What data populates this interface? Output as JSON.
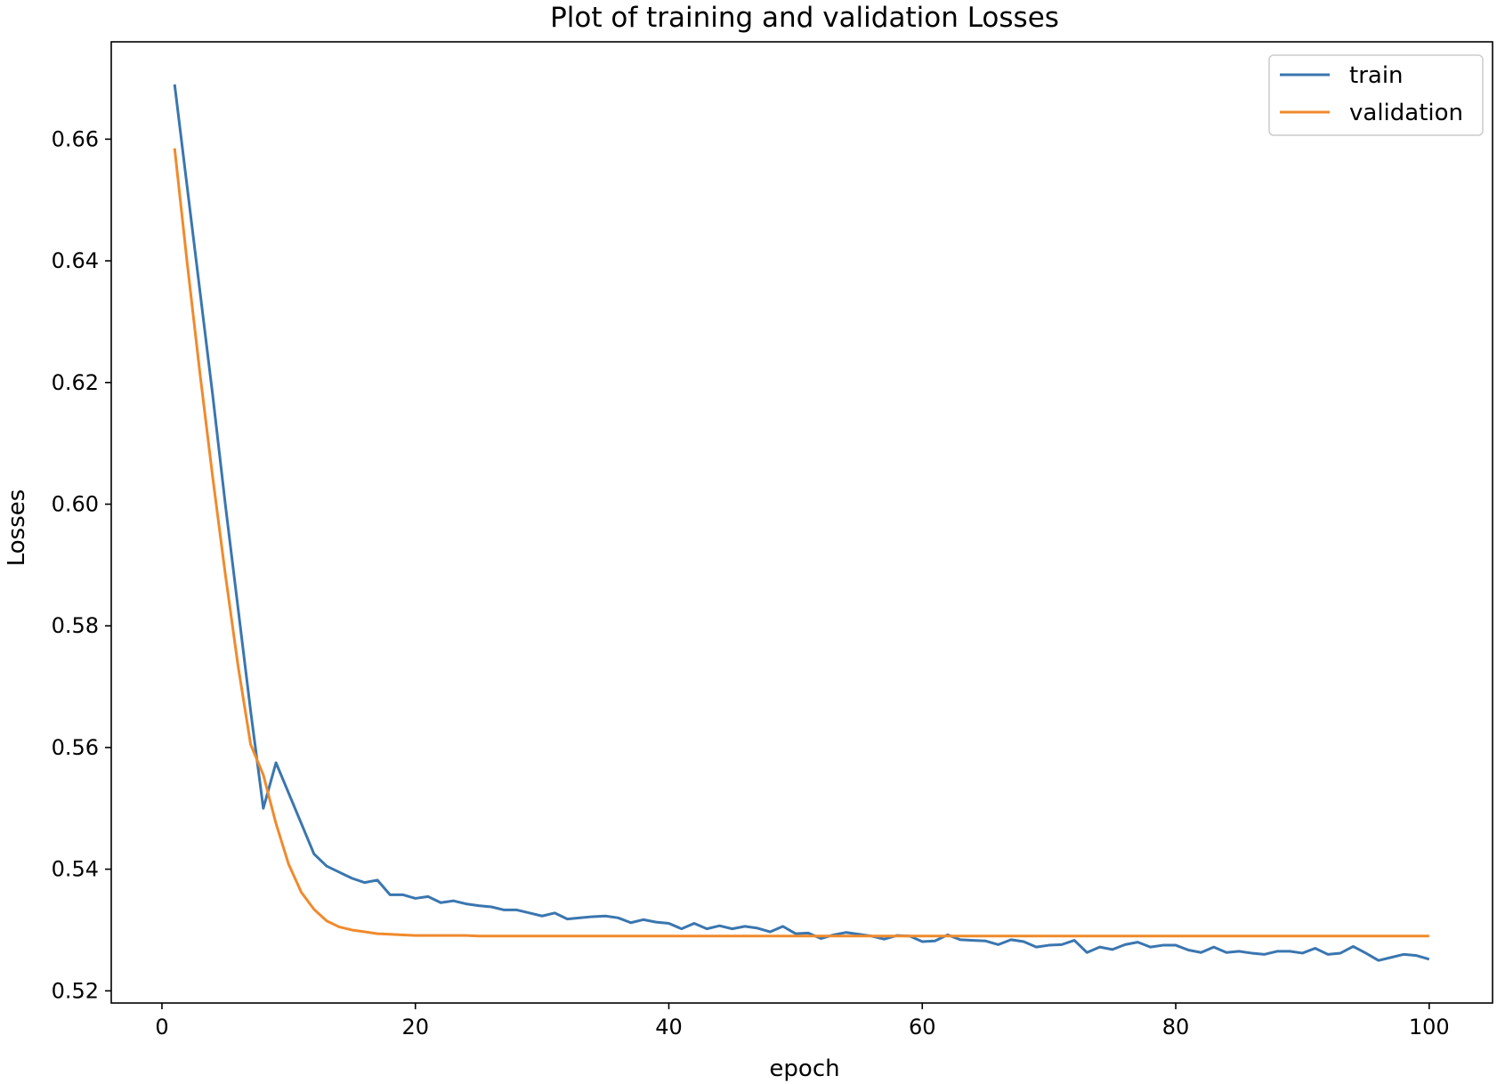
{
  "chart_data": {
    "type": "line",
    "title": "Plot of training and validation Losses",
    "xlabel": "epoch",
    "ylabel": "Losses",
    "xlim": [
      -4,
      105
    ],
    "ylim": [
      0.518,
      0.676
    ],
    "xticks": [
      0,
      20,
      40,
      60,
      80,
      100
    ],
    "xtick_labels": [
      "0",
      "20",
      "40",
      "60",
      "80",
      "100"
    ],
    "yticks": [
      0.52,
      0.54,
      0.56,
      0.58,
      0.6,
      0.62,
      0.64,
      0.66
    ],
    "ytick_labels": [
      "0.52",
      "0.54",
      "0.56",
      "0.58",
      "0.60",
      "0.62",
      "0.64",
      "0.66"
    ],
    "grid": false,
    "legend_position": "top-right",
    "x": [
      1,
      2,
      3,
      4,
      5,
      6,
      7,
      8,
      9,
      10,
      11,
      12,
      13,
      14,
      15,
      16,
      17,
      18,
      19,
      20,
      21,
      22,
      23,
      24,
      25,
      26,
      27,
      28,
      29,
      30,
      31,
      32,
      33,
      34,
      35,
      36,
      37,
      38,
      39,
      40,
      41,
      42,
      43,
      44,
      45,
      46,
      47,
      48,
      49,
      50,
      51,
      52,
      53,
      54,
      55,
      56,
      57,
      58,
      59,
      60,
      61,
      62,
      63,
      64,
      65,
      66,
      67,
      68,
      69,
      70,
      71,
      72,
      73,
      74,
      75,
      76,
      77,
      78,
      79,
      80,
      81,
      82,
      83,
      84,
      85,
      86,
      87,
      88,
      89,
      90,
      91,
      92,
      93,
      94,
      95,
      96,
      97,
      98,
      99,
      100
    ],
    "series": [
      {
        "name": "train",
        "color": "#3a76af",
        "values": [
          0.669,
          0.652,
          0.635,
          0.618,
          0.6,
          0.583,
          0.566,
          0.55,
          0.5575,
          0.5525,
          0.5475,
          0.5425,
          0.5405,
          0.5395,
          0.5385,
          0.5378,
          0.5382,
          0.5358,
          0.5358,
          0.5352,
          0.5355,
          0.5345,
          0.5348,
          0.5343,
          0.534,
          0.5338,
          0.5333,
          0.5333,
          0.5328,
          0.5323,
          0.5328,
          0.5318,
          0.532,
          0.5322,
          0.5323,
          0.532,
          0.5312,
          0.5317,
          0.5313,
          0.5311,
          0.5302,
          0.5311,
          0.5302,
          0.5307,
          0.5302,
          0.5306,
          0.5303,
          0.5297,
          0.5306,
          0.5294,
          0.5295,
          0.5286,
          0.5292,
          0.5296,
          0.5293,
          0.529,
          0.5285,
          0.5291,
          0.529,
          0.5281,
          0.5282,
          0.5292,
          0.5284,
          0.5283,
          0.5282,
          0.5276,
          0.5284,
          0.5281,
          0.5272,
          0.5275,
          0.5276,
          0.5283,
          0.5263,
          0.5272,
          0.5268,
          0.5276,
          0.528,
          0.5272,
          0.5275,
          0.5275,
          0.5267,
          0.5263,
          0.5272,
          0.5263,
          0.5265,
          0.5262,
          0.526,
          0.5265,
          0.5265,
          0.5262,
          0.527,
          0.526,
          0.5262,
          0.5273,
          0.5262,
          0.525,
          0.5255,
          0.526,
          0.5258,
          0.5252
        ]
      },
      {
        "name": "validation",
        "color": "#f08a2c",
        "values": [
          0.6585,
          0.6395,
          0.6215,
          0.6045,
          0.5885,
          0.5735,
          0.5605,
          0.5555,
          0.5475,
          0.5408,
          0.5362,
          0.5334,
          0.5315,
          0.5305,
          0.53,
          0.5297,
          0.5294,
          0.5293,
          0.5292,
          0.5291,
          0.5291,
          0.5291,
          0.5291,
          0.5291,
          0.529,
          0.529,
          0.529,
          0.529,
          0.529,
          0.529,
          0.529,
          0.529,
          0.529,
          0.529,
          0.529,
          0.529,
          0.529,
          0.529,
          0.529,
          0.529,
          0.529,
          0.529,
          0.529,
          0.529,
          0.529,
          0.529,
          0.529,
          0.529,
          0.529,
          0.529,
          0.529,
          0.529,
          0.529,
          0.529,
          0.529,
          0.529,
          0.529,
          0.529,
          0.529,
          0.529,
          0.529,
          0.529,
          0.529,
          0.529,
          0.529,
          0.529,
          0.529,
          0.529,
          0.529,
          0.529,
          0.529,
          0.529,
          0.529,
          0.529,
          0.529,
          0.529,
          0.529,
          0.529,
          0.529,
          0.529,
          0.529,
          0.529,
          0.529,
          0.529,
          0.529,
          0.529,
          0.529,
          0.529,
          0.529,
          0.529,
          0.529,
          0.529,
          0.529,
          0.529,
          0.529,
          0.529,
          0.529,
          0.529,
          0.529,
          0.529
        ]
      }
    ]
  }
}
